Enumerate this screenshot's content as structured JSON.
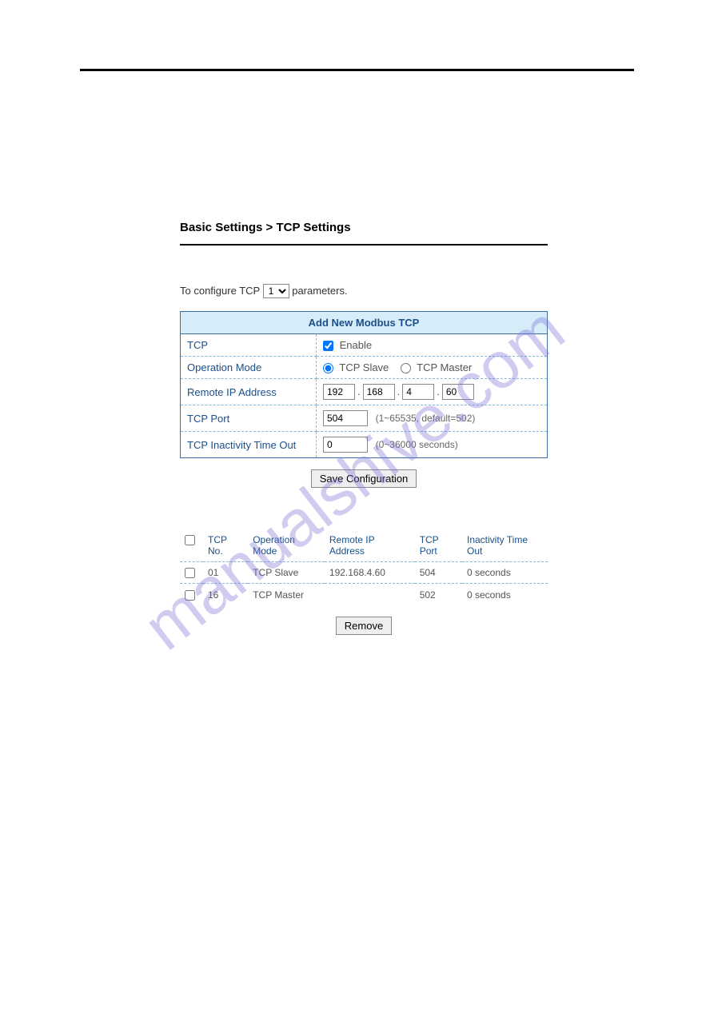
{
  "page": {
    "title": "Basic Settings > TCP Settings",
    "config_prefix": "To configure TCP",
    "config_suffix": "parameters.",
    "select_value": "1",
    "select_options": [
      "1"
    ]
  },
  "form": {
    "header": "Add New Modbus TCP",
    "rows": {
      "tcp": {
        "label": "TCP",
        "enable_label": "Enable",
        "enabled": true
      },
      "mode": {
        "label": "Operation Mode",
        "slave_label": "TCP Slave",
        "master_label": "TCP Master",
        "selected": "slave"
      },
      "remote_ip": {
        "label": "Remote IP Address",
        "oct1": "192",
        "oct2": "168",
        "oct3": "4",
        "oct4": "60"
      },
      "port": {
        "label": "TCP Port",
        "value": "504",
        "hint": "(1~65535, default=502)"
      },
      "timeout": {
        "label": "TCP Inactivity Time Out",
        "value": "0",
        "hint": "(0~36000 seconds)"
      }
    },
    "save_button": "Save Configuration"
  },
  "list": {
    "headers": {
      "tcp_no": "TCP No.",
      "mode": "Operation Mode",
      "remote_ip": "Remote IP Address",
      "port": "TCP Port",
      "timeout": "Inactivity Time Out"
    },
    "rows": [
      {
        "no": "01",
        "mode": "TCP Slave",
        "ip": "192.168.4.60",
        "port": "504",
        "timeout": "0 seconds"
      },
      {
        "no": "16",
        "mode": "TCP Master",
        "ip": "",
        "port": "502",
        "timeout": "0 seconds"
      }
    ],
    "remove_button": "Remove"
  },
  "watermark": {
    "text": "manualshive.com",
    "color": "#7b6fd6",
    "opacity": 0.35,
    "angle_deg": -38
  },
  "colors": {
    "header_bg": "#d6ecf9",
    "border": "#3b6ea5",
    "dashed": "#7fb8e0",
    "label_text": "#1a4f8b",
    "body_text": "#555555",
    "page_bg": "#ffffff"
  }
}
